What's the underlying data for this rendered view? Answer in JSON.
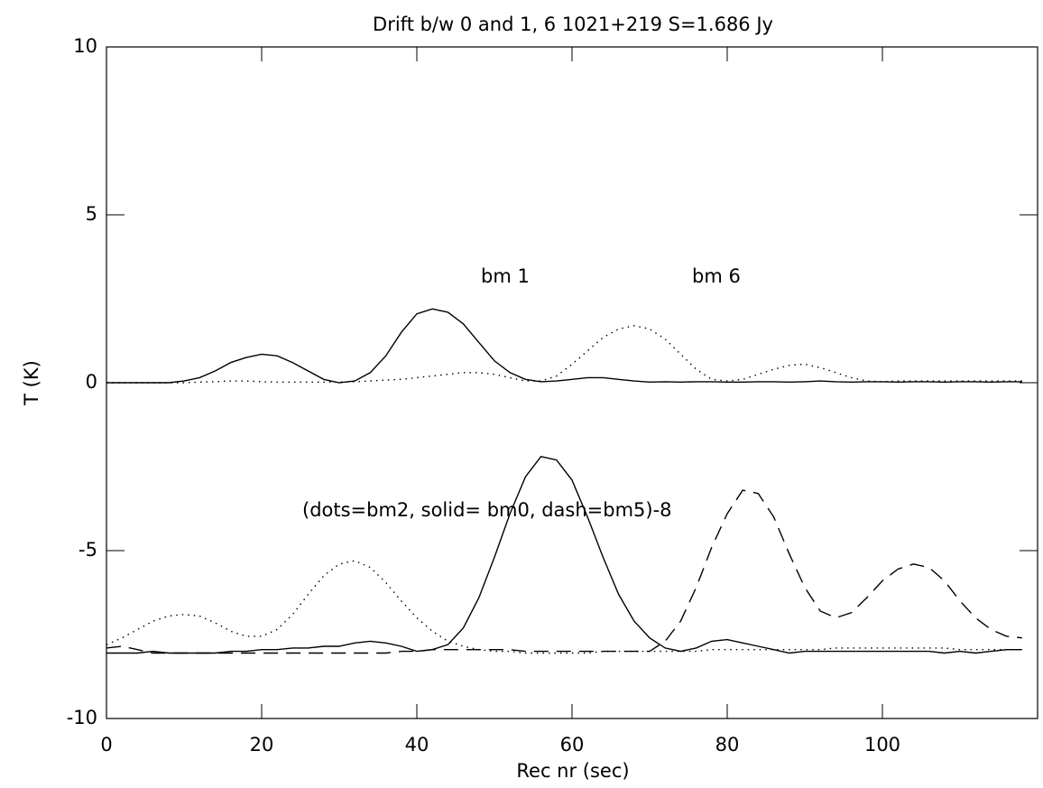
{
  "chart_data": {
    "type": "line",
    "title": "Drift b/w 0 and 1, 6 1021+219 S=1.686 Jy",
    "x_label": "Rec nr (sec)",
    "y_label": "T (K)",
    "annotations": [
      "bm 1",
      "bm 6",
      "(dots=bm2, solid= bm0, dash=bm5)-8"
    ],
    "xlim": [
      0,
      120
    ],
    "ylim": [
      -10,
      10
    ],
    "xticks": [
      0,
      20,
      40,
      60,
      80,
      100
    ],
    "yticks": [
      -10,
      -5,
      0,
      5,
      10
    ],
    "x": [
      0,
      2,
      4,
      6,
      8,
      10,
      12,
      14,
      16,
      18,
      20,
      22,
      24,
      26,
      28,
      30,
      32,
      34,
      36,
      38,
      40,
      42,
      44,
      46,
      48,
      50,
      52,
      54,
      56,
      58,
      60,
      62,
      64,
      66,
      68,
      70,
      72,
      74,
      76,
      78,
      80,
      82,
      84,
      86,
      88,
      90,
      92,
      94,
      96,
      98,
      100,
      102,
      104,
      106,
      108,
      110,
      112,
      114,
      116,
      118
    ],
    "series": [
      {
        "color": "#000000",
        "style": "solid",
        "values": [
          0,
          0,
          0,
          0,
          0,
          0.05,
          0.15,
          0.35,
          0.6,
          0.75,
          0.85,
          0.8,
          0.6,
          0.35,
          0.1,
          0,
          0.05,
          0.3,
          0.8,
          1.5,
          2.05,
          2.2,
          2.1,
          1.75,
          1.2,
          0.65,
          0.3,
          0.1,
          0.03,
          0.05,
          0.1,
          0.15,
          0.15,
          0.1,
          0.05,
          0.02,
          0.03,
          0.02,
          0.03,
          0.03,
          0.02,
          0.02,
          0.03,
          0.03,
          0.02,
          0.03,
          0.05,
          0.03,
          0.02,
          0.03,
          0.03,
          0.02,
          0.03,
          0.03,
          0.02,
          0.03,
          0.03,
          0.02,
          0.03,
          0.03
        ]
      },
      {
        "color": "#000000",
        "style": "dotted",
        "values": [
          0,
          0,
          0,
          0,
          0,
          0,
          0.02,
          0.03,
          0.05,
          0.05,
          0.03,
          0.02,
          0.02,
          0.02,
          0.02,
          0.02,
          0.03,
          0.05,
          0.08,
          0.1,
          0.15,
          0.2,
          0.25,
          0.3,
          0.3,
          0.25,
          0.15,
          0.05,
          0.05,
          0.2,
          0.55,
          0.95,
          1.35,
          1.6,
          1.7,
          1.6,
          1.3,
          0.85,
          0.4,
          0.1,
          0.05,
          0.1,
          0.25,
          0.4,
          0.52,
          0.55,
          0.45,
          0.3,
          0.15,
          0.05,
          0.03,
          0.05,
          0.05,
          0.05,
          0.05,
          0.05,
          0.05,
          0.05,
          0.05,
          0.05
        ]
      },
      {
        "color": "#000000",
        "style": "solid",
        "values": [
          -8.05,
          -8.05,
          -8.05,
          -8.0,
          -8.05,
          -8.05,
          -8.05,
          -8.05,
          -8.0,
          -8.0,
          -7.95,
          -7.95,
          -7.9,
          -7.9,
          -7.85,
          -7.85,
          -7.75,
          -7.7,
          -7.75,
          -7.85,
          -8.0,
          -7.95,
          -7.8,
          -7.3,
          -6.4,
          -5.2,
          -3.9,
          -2.8,
          -2.2,
          -2.3,
          -2.9,
          -4.0,
          -5.2,
          -6.3,
          -7.1,
          -7.6,
          -7.9,
          -8.0,
          -7.9,
          -7.7,
          -7.65,
          -7.75,
          -7.85,
          -7.95,
          -8.05,
          -8.0,
          -8.0,
          -8.0,
          -8.0,
          -8.0,
          -8.0,
          -8.0,
          -8.0,
          -8.0,
          -8.05,
          -8.0,
          -8.05,
          -8.0,
          -7.95,
          -7.95
        ]
      },
      {
        "color": "#000000",
        "style": "dotted",
        "values": [
          -7.8,
          -7.6,
          -7.35,
          -7.1,
          -6.95,
          -6.9,
          -6.95,
          -7.15,
          -7.4,
          -7.55,
          -7.55,
          -7.35,
          -6.9,
          -6.3,
          -5.75,
          -5.4,
          -5.3,
          -5.5,
          -5.95,
          -6.5,
          -7.0,
          -7.4,
          -7.7,
          -7.85,
          -7.95,
          -8.0,
          -8.0,
          -8.05,
          -8.05,
          -8.05,
          -8.05,
          -8.05,
          -8.0,
          -8.0,
          -8.0,
          -8.0,
          -8.0,
          -8.0,
          -8.0,
          -7.95,
          -7.95,
          -7.95,
          -7.95,
          -7.95,
          -7.95,
          -7.95,
          -7.95,
          -7.9,
          -7.9,
          -7.9,
          -7.9,
          -7.9,
          -7.9,
          -7.9,
          -7.9,
          -7.95,
          -7.95,
          -7.95,
          -7.95,
          -7.95
        ]
      },
      {
        "color": "#000000",
        "style": "dashed",
        "values": [
          -7.9,
          -7.85,
          -7.95,
          -8.05,
          -8.05,
          -8.05,
          -8.05,
          -8.05,
          -8.05,
          -8.05,
          -8.05,
          -8.05,
          -8.05,
          -8.05,
          -8.05,
          -8.05,
          -8.05,
          -8.05,
          -8.05,
          -8.0,
          -8.0,
          -7.95,
          -7.95,
          -7.95,
          -7.95,
          -7.95,
          -7.95,
          -8.0,
          -8.0,
          -8.0,
          -8.0,
          -8.0,
          -8.0,
          -8.0,
          -8.0,
          -8.0,
          -7.7,
          -7.1,
          -6.1,
          -4.9,
          -3.9,
          -3.2,
          -3.3,
          -4.0,
          -5.1,
          -6.1,
          -6.8,
          -7.0,
          -6.85,
          -6.4,
          -5.9,
          -5.55,
          -5.4,
          -5.5,
          -5.9,
          -6.5,
          -7.0,
          -7.35,
          -7.55,
          -7.6
        ]
      }
    ]
  }
}
